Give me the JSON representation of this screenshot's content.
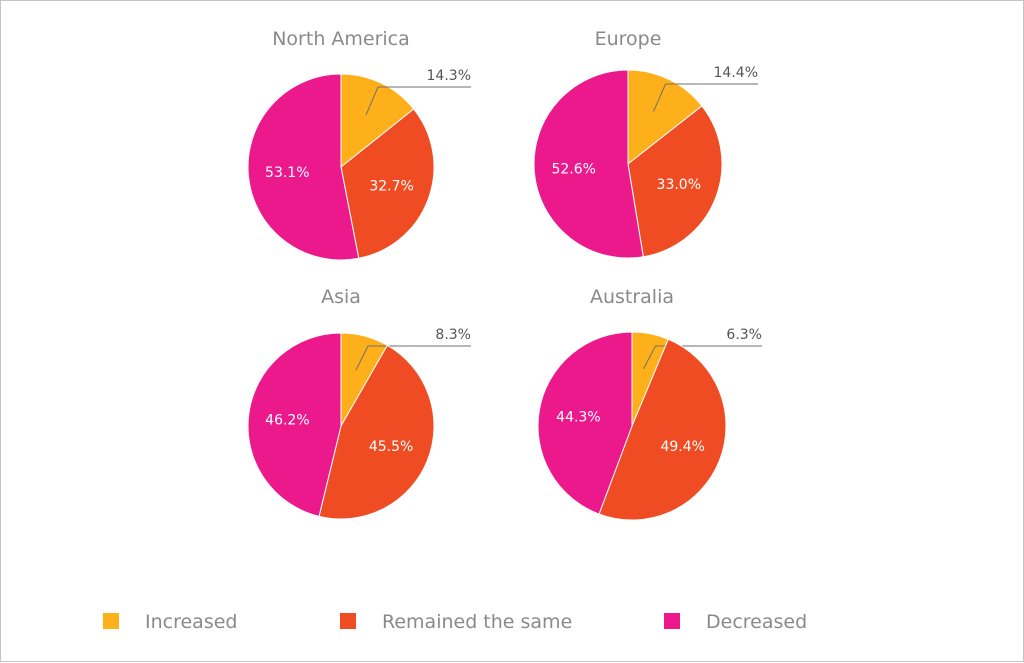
{
  "chart_data": {
    "type": "pie",
    "legend_position": "bottom",
    "categories": [
      "Increased",
      "Remained the same",
      "Decreased"
    ],
    "colors": {
      "Increased": "#FDB01A",
      "Remained the same": "#F04C23",
      "Decreased": "#EC198C"
    },
    "charts": [
      {
        "title": "North America",
        "values": [
          14.3,
          32.7,
          53.1
        ],
        "labels": [
          "14.3%",
          "32.7%",
          "53.1%"
        ]
      },
      {
        "title": "Europe",
        "values": [
          14.4,
          33.0,
          52.6
        ],
        "labels": [
          "14.4%",
          "33.0%",
          "52.6%"
        ]
      },
      {
        "title": "Asia",
        "values": [
          8.3,
          45.5,
          46.2
        ],
        "labels": [
          "8.3%",
          "45.5%",
          "46.2%"
        ]
      },
      {
        "title": "Australia",
        "values": [
          6.3,
          49.4,
          44.3
        ],
        "labels": [
          "6.3%",
          "49.4%",
          "44.3%"
        ]
      }
    ]
  }
}
